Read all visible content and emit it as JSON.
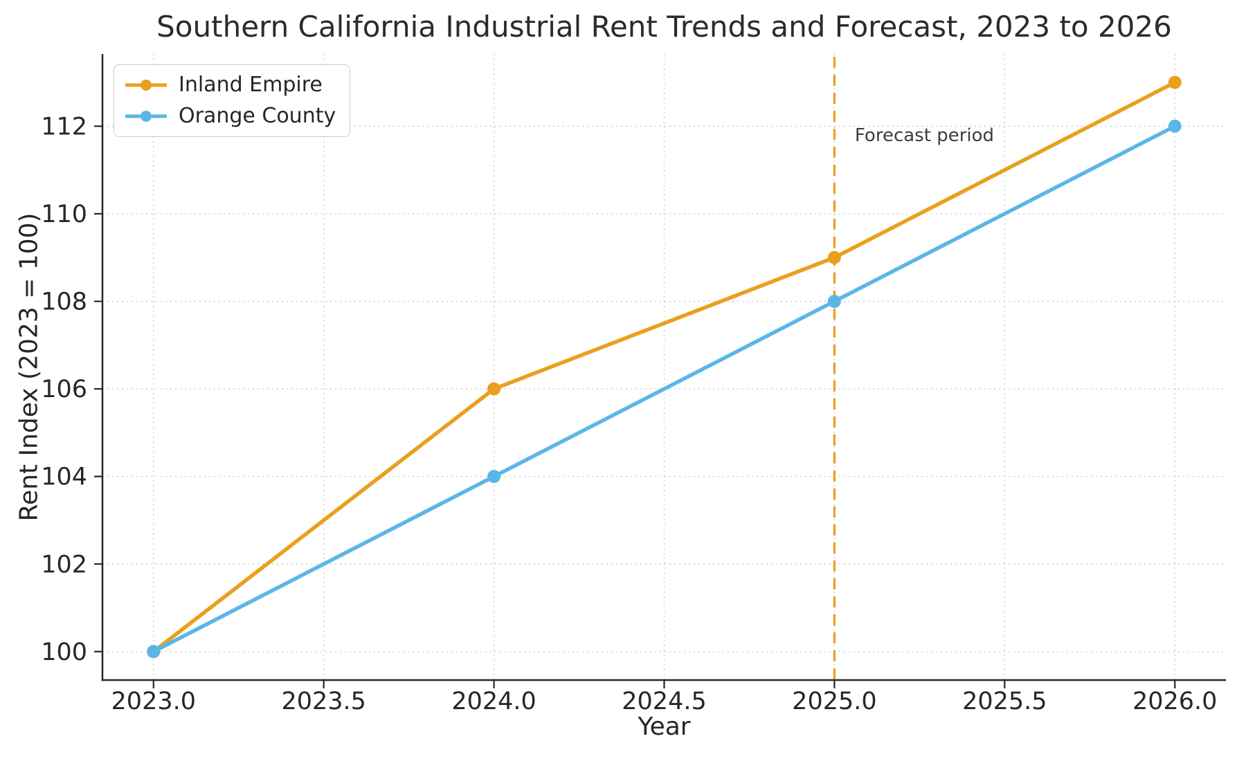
{
  "chart_data": {
    "type": "line",
    "title": "Southern California Industrial Rent Trends and Forecast, 2023 to 2026",
    "xlabel": "Year",
    "ylabel": "Rent Index (2023 = 100)",
    "x": [
      2023,
      2024,
      2025,
      2026
    ],
    "series": [
      {
        "name": "Inland Empire",
        "values": [
          100,
          106,
          109,
          113
        ],
        "color": "#E8A01E"
      },
      {
        "name": "Orange County",
        "values": [
          100,
          104,
          108,
          112
        ],
        "color": "#5BB6E8"
      }
    ],
    "xlim": [
      2022.85,
      2026.15
    ],
    "ylim": [
      99.35,
      113.65
    ],
    "xticks": {
      "values": [
        2023.0,
        2023.5,
        2024.0,
        2024.5,
        2025.0,
        2025.5,
        2026.0
      ],
      "labels": [
        "2023.0",
        "2023.5",
        "2024.0",
        "2024.5",
        "2025.0",
        "2025.5",
        "2026.0"
      ]
    },
    "yticks": {
      "values": [
        100,
        102,
        104,
        106,
        108,
        110,
        112
      ],
      "labels": [
        "100",
        "102",
        "104",
        "106",
        "108",
        "110",
        "112"
      ]
    },
    "grid": true,
    "grid_style": "dotted",
    "legend_position": "upper-left",
    "forecast_line": {
      "x": 2025,
      "style": "dashed",
      "color": "#E8A01E"
    },
    "annotation": {
      "text": "Forecast period",
      "x": 2025.06,
      "y": 111.75,
      "color": "#3d3d3d"
    }
  },
  "colors": {
    "background": "#ffffff",
    "spine": "#262626",
    "grid": "#c6c6c6",
    "tick_text": "#262626",
    "title_text": "#2b2b2b",
    "inland_empire": "#E8A01E",
    "orange_county": "#5BB6E8"
  }
}
